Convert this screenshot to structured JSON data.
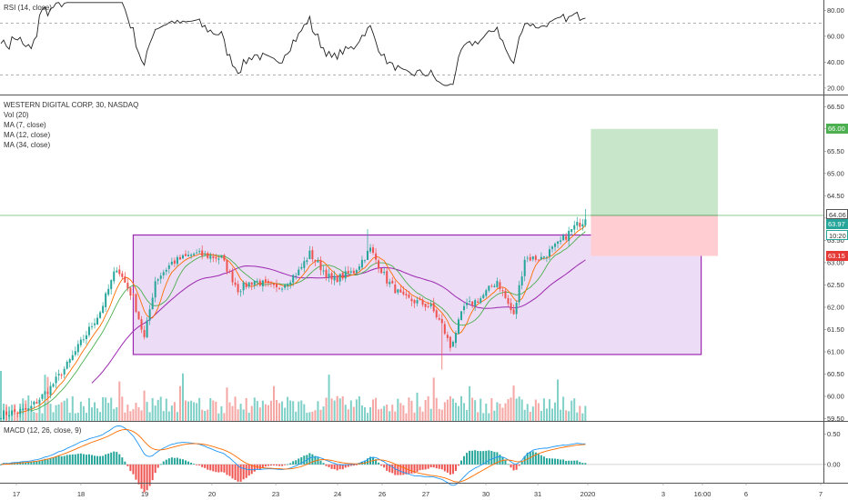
{
  "rsi": {
    "label": "RSI (14, close)",
    "ticks": [
      "80.00",
      "60.00",
      "40.00",
      "20.00"
    ],
    "tick_values": [
      80,
      60,
      40,
      20
    ],
    "ylim": [
      15,
      88
    ],
    "bands": [
      70,
      30
    ]
  },
  "main": {
    "title": "WESTERN DIGITAL CORP, 30, NASDAQ",
    "legend": [
      "Vol (20)",
      "MA (7, close)",
      "MA (12, close)",
      "MA (34, close)"
    ],
    "ticks": [
      "66.50",
      "66.00",
      "65.50",
      "65.00",
      "64.50",
      "64.00",
      "63.50",
      "63.00",
      "62.50",
      "62.00",
      "61.50",
      "61.00",
      "60.50",
      "60.00",
      "59.50"
    ],
    "tick_values": [
      66.5,
      66,
      65.5,
      65,
      64.5,
      64,
      63.5,
      63,
      62.5,
      62,
      61.5,
      61,
      60.5,
      60,
      59.5
    ],
    "ylim": [
      59.45,
      66.75
    ],
    "last_price": "63.97",
    "last_price_value": 63.97,
    "countdown": "10:20",
    "horizontal_line": "64.06",
    "horizontal_line_value": 64.06,
    "target_label": "66.00",
    "target_value": 66.0,
    "stop_label": "63.15",
    "stop_value": 63.15,
    "range_box": {
      "from_bar": 48,
      "to_bar": 254,
      "top": 63.62,
      "bottom": 60.94
    }
  },
  "macd": {
    "label": "MACD (12, 26, close, 9)",
    "ticks": [
      "0.50",
      "0.00"
    ],
    "tick_values": [
      0.5,
      0.0
    ],
    "ylim": [
      -0.3,
      0.7
    ]
  },
  "xaxis": {
    "labels": [
      "17",
      "18",
      "19",
      "20",
      "23",
      "24",
      "26",
      "27",
      "30",
      "31",
      "2020",
      "3",
      "16:00",
      "6",
      "7"
    ]
  },
  "colors": {
    "up": "#26a69a",
    "down": "#ef5350",
    "ma7": "#ff6d00",
    "ma12": "#4caf50",
    "ma34": "#9c27b0",
    "box_border": "#9c27b0",
    "box_fill": "#e9d6f3",
    "profit": "#c8e6c9",
    "loss": "#ffcdd2",
    "rsi_line": "#222222",
    "macd_line": "#2196f3",
    "signal_line": "#ff6d00"
  },
  "chart_data": {
    "type": "candlestick",
    "title": "WESTERN DIGITAL CORP, 30, NASDAQ",
    "x_labels": [
      "17",
      "18",
      "19",
      "20",
      "23",
      "24",
      "26",
      "27",
      "30",
      "31",
      "2020"
    ],
    "anchors": [
      {
        "i": 0,
        "c": 59.6
      },
      {
        "i": 10,
        "c": 59.7
      },
      {
        "i": 18,
        "c": 60.2
      },
      {
        "i": 24,
        "c": 60.7
      },
      {
        "i": 30,
        "c": 61.3
      },
      {
        "i": 36,
        "c": 61.9
      },
      {
        "i": 42,
        "c": 62.9
      },
      {
        "i": 48,
        "c": 62.2
      },
      {
        "i": 52,
        "c": 61.3
      },
      {
        "i": 56,
        "c": 62.6
      },
      {
        "i": 62,
        "c": 63.0
      },
      {
        "i": 70,
        "c": 63.2
      },
      {
        "i": 80,
        "c": 63.1
      },
      {
        "i": 86,
        "c": 62.4
      },
      {
        "i": 92,
        "c": 62.6
      },
      {
        "i": 100,
        "c": 62.4
      },
      {
        "i": 108,
        "c": 62.8
      },
      {
        "i": 112,
        "c": 63.2
      },
      {
        "i": 120,
        "c": 62.6
      },
      {
        "i": 128,
        "c": 62.8
      },
      {
        "i": 134,
        "c": 63.3
      },
      {
        "i": 140,
        "c": 62.6
      },
      {
        "i": 146,
        "c": 62.2
      },
      {
        "i": 152,
        "c": 62.1
      },
      {
        "i": 156,
        "c": 62.0
      },
      {
        "i": 160,
        "c": 61.6
      },
      {
        "i": 163,
        "c": 61.1
      },
      {
        "i": 168,
        "c": 62.0
      },
      {
        "i": 174,
        "c": 62.2
      },
      {
        "i": 180,
        "c": 62.6
      },
      {
        "i": 186,
        "c": 61.8
      },
      {
        "i": 190,
        "c": 63.1
      },
      {
        "i": 196,
        "c": 63.1
      },
      {
        "i": 202,
        "c": 63.4
      },
      {
        "i": 208,
        "c": 63.8
      },
      {
        "i": 212,
        "c": 63.97
      }
    ],
    "n_bars": 213,
    "volume": "relative bars, bottom of price pane",
    "indicators": [
      "MA 7",
      "MA 12",
      "MA 34",
      "RSI 14",
      "MACD 12 26 9"
    ]
  }
}
